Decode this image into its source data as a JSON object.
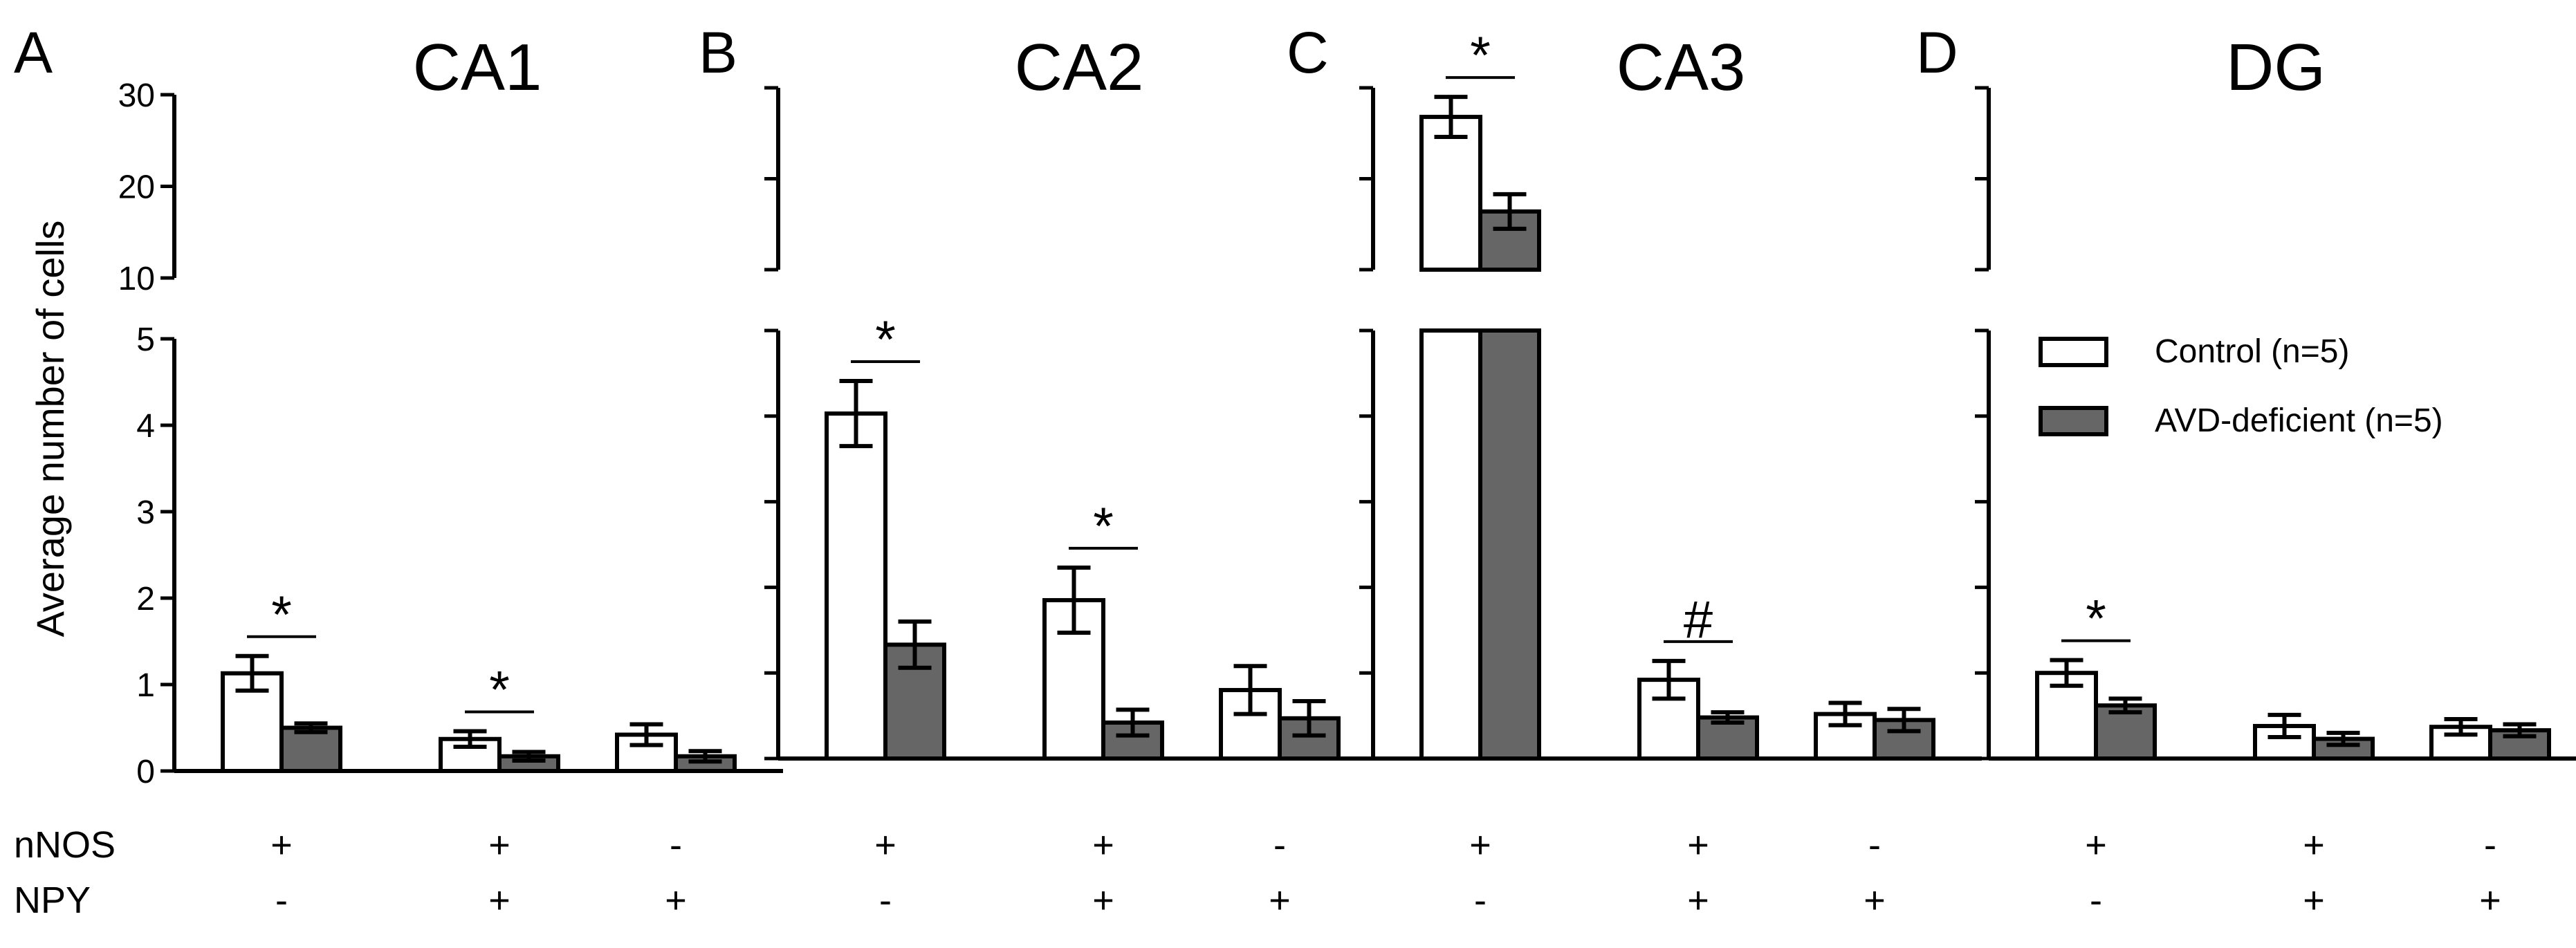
{
  "chart_data": [
    {
      "type": "bar",
      "panel": "A",
      "title": "CA1",
      "ylabel": "Average number of cells",
      "categories": [
        "nNOS+ NPY-",
        "nNOS+ NPY+",
        "nNOS- NPY+"
      ],
      "series": [
        {
          "name": "Control (n=5)",
          "values": [
            1.13,
            0.37,
            0.42
          ],
          "errors": [
            0.2,
            0.09,
            0.12
          ]
        },
        {
          "name": "AVD-deficient (n=5)",
          "values": [
            0.5,
            0.17,
            0.17
          ],
          "errors": [
            0.05,
            0.05,
            0.06
          ]
        }
      ],
      "significance": [
        {
          "category": 0,
          "label": "*"
        },
        {
          "category": 1,
          "label": "*"
        }
      ],
      "ytick_labels_lower": [
        "0",
        "1",
        "2",
        "3",
        "4",
        "5"
      ],
      "ytick_labels_upper": [
        "10",
        "20",
        "30"
      ],
      "ylim_lower": [
        0,
        5
      ],
      "ylim_upper": [
        10,
        30
      ],
      "axis_break": true
    },
    {
      "type": "bar",
      "panel": "B",
      "title": "CA2",
      "categories": [
        "nNOS+ NPY-",
        "nNOS+ NPY+",
        "nNOS- NPY+"
      ],
      "series": [
        {
          "name": "Control (n=5)",
          "values": [
            4.03,
            1.85,
            0.8
          ],
          "errors": [
            0.38,
            0.38,
            0.28
          ]
        },
        {
          "name": "AVD-deficient (n=5)",
          "values": [
            1.33,
            0.42,
            0.47
          ],
          "errors": [
            0.27,
            0.15,
            0.2
          ]
        }
      ],
      "significance": [
        {
          "category": 0,
          "label": "*"
        },
        {
          "category": 1,
          "label": "*"
        }
      ],
      "ylim_lower": [
        0,
        5
      ],
      "ylim_upper": [
        10,
        30
      ],
      "axis_break": true
    },
    {
      "type": "bar",
      "panel": "C",
      "title": "CA3",
      "categories": [
        "nNOS+ NPY-",
        "nNOS+ NPY+",
        "nNOS- NPY+"
      ],
      "series": [
        {
          "name": "Control (n=5)",
          "values": [
            26.8,
            0.92,
            0.52
          ],
          "errors": [
            2.2,
            0.22,
            0.13
          ]
        },
        {
          "name": "AVD-deficient (n=5)",
          "values": [
            16.4,
            0.48,
            0.45
          ],
          "errors": [
            1.9,
            0.06,
            0.13
          ]
        }
      ],
      "significance": [
        {
          "category": 0,
          "label": "*"
        },
        {
          "category": 1,
          "label": "#"
        }
      ],
      "ylim_lower": [
        0,
        5
      ],
      "ylim_upper": [
        10,
        30
      ],
      "axis_break": true
    },
    {
      "type": "bar",
      "panel": "D",
      "title": "DG",
      "categories": [
        "nNOS+ NPY-",
        "nNOS+ NPY+",
        "nNOS- NPY+"
      ],
      "series": [
        {
          "name": "Control (n=5)",
          "values": [
            1.0,
            0.38,
            0.37
          ],
          "errors": [
            0.15,
            0.13,
            0.09
          ]
        },
        {
          "name": "AVD-deficient (n=5)",
          "values": [
            0.62,
            0.23,
            0.33
          ],
          "errors": [
            0.08,
            0.07,
            0.07
          ]
        }
      ],
      "significance": [
        {
          "category": 0,
          "label": "*"
        }
      ],
      "ylim_lower": [
        0,
        5
      ],
      "ylim_upper": [
        10,
        30
      ],
      "axis_break": true
    }
  ],
  "legend": {
    "items": [
      {
        "label": "Control (n=5)",
        "fill": "#ffffff"
      },
      {
        "label": "AVD-deficient (n=5)",
        "fill": "#666666"
      }
    ],
    "placement": "right"
  },
  "conditions": {
    "rows": [
      {
        "label": "nNOS",
        "values": [
          "+",
          "+",
          "-"
        ]
      },
      {
        "label": "NPY",
        "values": [
          "-",
          "+",
          "+"
        ]
      }
    ]
  },
  "colors": {
    "control": "#ffffff",
    "deficient": "#666666",
    "stroke": "#000000"
  }
}
